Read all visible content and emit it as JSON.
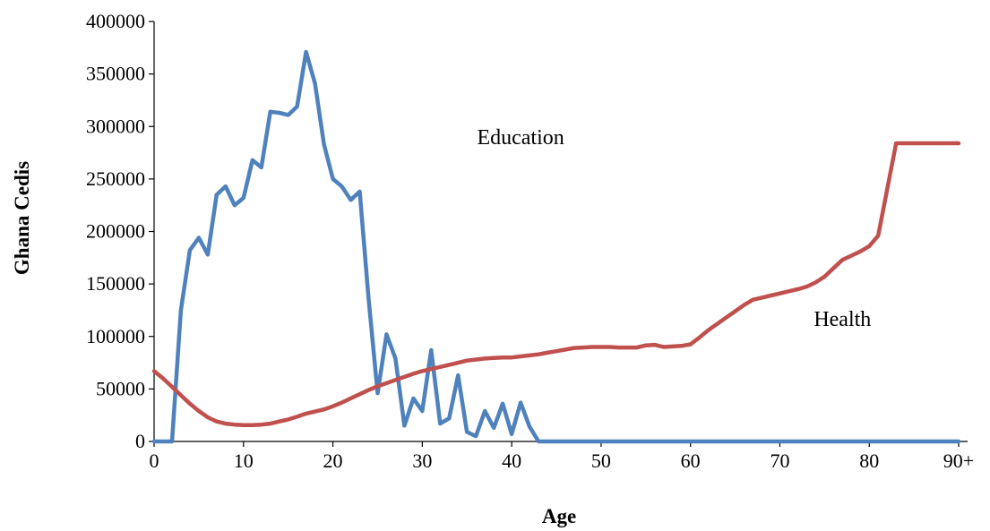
{
  "chart_data": {
    "type": "line",
    "title": "",
    "xlabel": "Age",
    "ylabel": "Ghana Cedis",
    "xlim": [
      0,
      91
    ],
    "ylim": [
      0,
      400000
    ],
    "y_ticks": [
      0,
      50000,
      100000,
      150000,
      200000,
      250000,
      300000,
      350000,
      400000
    ],
    "y_tick_labels": [
      "0",
      "50000",
      "100000",
      "150000",
      "200000",
      "250000",
      "300000",
      "350000",
      "400000"
    ],
    "x_ticks": [
      0,
      10,
      20,
      30,
      40,
      50,
      60,
      70,
      80,
      90
    ],
    "x_tick_labels": [
      "0",
      "10",
      "20",
      "30",
      "40",
      "50",
      "60",
      "70",
      "80",
      "90+"
    ],
    "grid": false,
    "legend": "none",
    "series": [
      {
        "name": "Education",
        "color": "#4F81BD",
        "label_at": [
          41,
          283000
        ],
        "x": [
          0,
          1,
          2,
          3,
          4,
          5,
          6,
          7,
          8,
          9,
          10,
          11,
          12,
          13,
          14,
          15,
          16,
          17,
          18,
          19,
          20,
          21,
          22,
          23,
          24,
          25,
          26,
          27,
          28,
          29,
          30,
          31,
          32,
          33,
          34,
          35,
          36,
          37,
          38,
          39,
          40,
          41,
          42,
          43,
          44,
          45,
          46,
          47,
          48,
          49,
          50,
          51,
          52,
          53,
          54,
          55,
          56,
          57,
          58,
          59,
          60,
          61,
          62,
          63,
          64,
          65,
          66,
          67,
          68,
          69,
          70,
          71,
          72,
          73,
          74,
          75,
          76,
          77,
          78,
          79,
          80,
          81,
          82,
          83,
          84,
          85,
          86,
          87,
          88,
          89,
          90
        ],
        "y": [
          0,
          0,
          0,
          125000,
          182000,
          194000,
          178000,
          235000,
          243000,
          225000,
          232000,
          268000,
          261000,
          314000,
          313000,
          311000,
          319000,
          371000,
          341000,
          283000,
          250000,
          243000,
          230000,
          238000,
          135000,
          46000,
          102000,
          79000,
          15000,
          41000,
          29000,
          87000,
          17000,
          22000,
          63000,
          9000,
          5000,
          29000,
          13000,
          36000,
          7000,
          37000,
          14000,
          0,
          0,
          0,
          0,
          0,
          0,
          0,
          0,
          0,
          0,
          0,
          0,
          0,
          0,
          0,
          0,
          0,
          0,
          0,
          0,
          0,
          0,
          0,
          0,
          0,
          0,
          0,
          0,
          0,
          0,
          0,
          0,
          0,
          0,
          0,
          0,
          0,
          0,
          0,
          0,
          0,
          0,
          0,
          0,
          0,
          0,
          0,
          0
        ]
      },
      {
        "name": "Health",
        "color": "#C0504D",
        "label_at": [
          77,
          110000
        ],
        "x": [
          0,
          1,
          2,
          3,
          4,
          5,
          6,
          7,
          8,
          9,
          10,
          11,
          12,
          13,
          14,
          15,
          16,
          17,
          18,
          19,
          20,
          21,
          22,
          23,
          24,
          25,
          26,
          27,
          28,
          29,
          30,
          31,
          32,
          33,
          34,
          35,
          36,
          37,
          38,
          39,
          40,
          41,
          42,
          43,
          44,
          45,
          46,
          47,
          48,
          49,
          50,
          51,
          52,
          53,
          54,
          55,
          56,
          57,
          58,
          59,
          60,
          61,
          62,
          63,
          64,
          65,
          66,
          67,
          68,
          69,
          70,
          71,
          72,
          73,
          74,
          75,
          76,
          77,
          78,
          79,
          80,
          81,
          82,
          83,
          84,
          85,
          86,
          87,
          88,
          89,
          90
        ],
        "y": [
          67000,
          60000,
          52000,
          44000,
          36000,
          29000,
          23000,
          19000,
          17000,
          16000,
          15500,
          15500,
          16000,
          17000,
          19000,
          21000,
          23500,
          26500,
          28500,
          30500,
          33500,
          37000,
          41000,
          45000,
          49000,
          52500,
          55500,
          58500,
          61500,
          64500,
          67000,
          69000,
          71000,
          73000,
          75000,
          77000,
          78000,
          79000,
          79500,
          80000,
          80000,
          81000,
          82000,
          83000,
          84500,
          86000,
          87500,
          89000,
          89500,
          90000,
          90000,
          90000,
          89500,
          89500,
          89500,
          91500,
          92000,
          90000,
          90500,
          91000,
          92500,
          99000,
          106000,
          112000,
          118000,
          124000,
          130000,
          135000,
          137000,
          139000,
          141000,
          143000,
          145000,
          147500,
          151500,
          157000,
          165000,
          173000,
          177000,
          181000,
          186000,
          196000,
          240000,
          284000,
          284000,
          284000,
          284000,
          284000,
          284000,
          284000,
          284000
        ]
      }
    ]
  }
}
